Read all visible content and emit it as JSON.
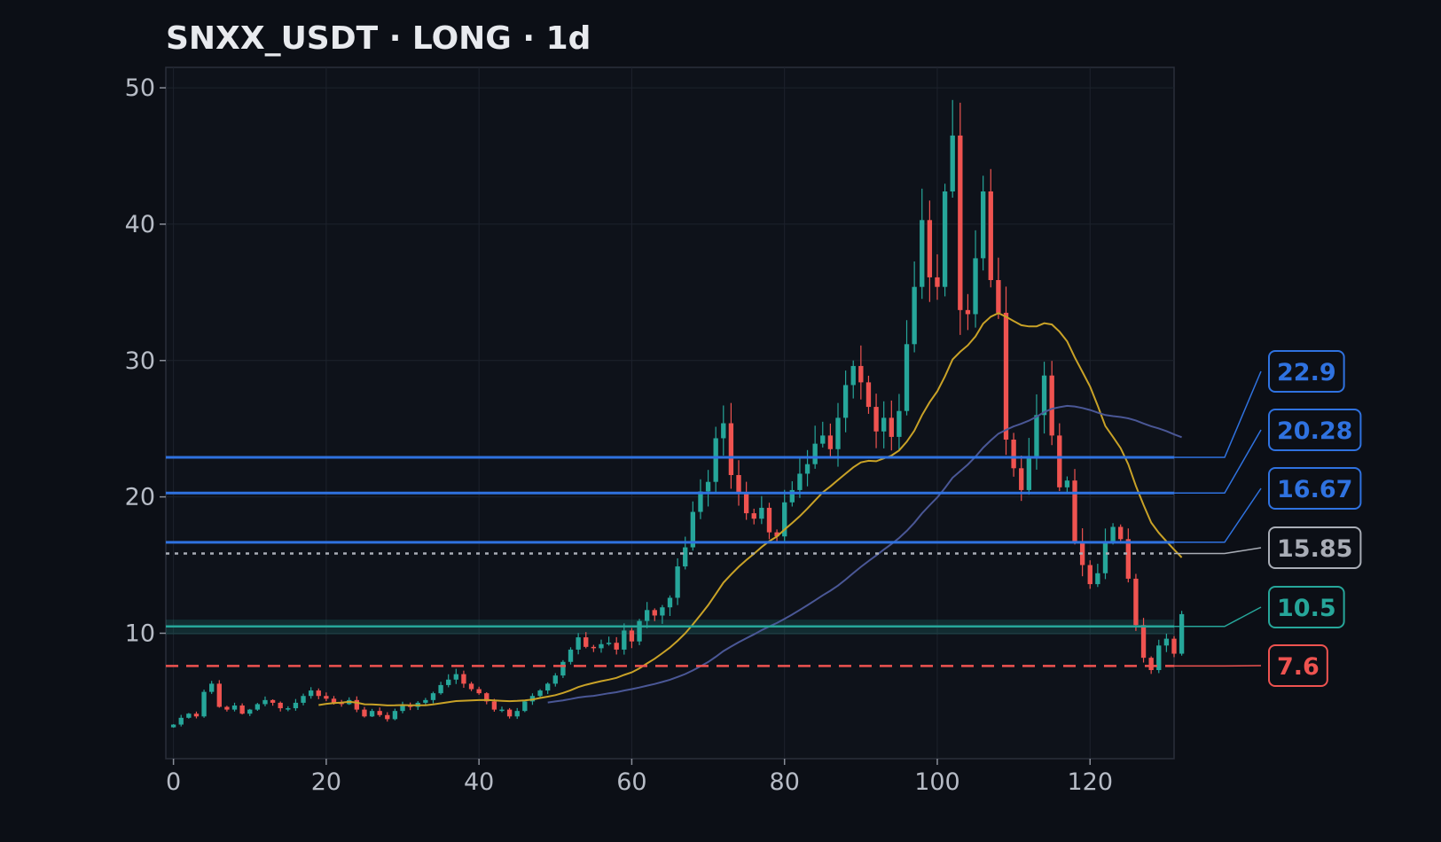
{
  "chart_data": {
    "type": "candlestick",
    "title": "SNXX_USDT · LONG · 1d",
    "xlabel": "",
    "ylabel": "",
    "xlim": [
      -1,
      131
    ],
    "ylim": [
      0.8,
      51.5
    ],
    "x_ticks": [
      0,
      20,
      40,
      60,
      80,
      100,
      120
    ],
    "y_ticks": [
      10,
      20,
      30,
      40,
      50
    ],
    "grid": true,
    "colors": {
      "background": "#0c0f16",
      "up": "#26a69a",
      "down": "#ef5350",
      "ma_fast": "#c9a227",
      "ma_slow": "#4a5796",
      "target": "#2f72e0",
      "entry": "#a9adb6",
      "take_profit_zone": "#26a69a",
      "stop": "#ef5350"
    },
    "levels": [
      {
        "label": "22.9",
        "value": 22.9,
        "kind": "target",
        "style": "solid"
      },
      {
        "label": "20.28",
        "value": 20.28,
        "kind": "target",
        "style": "solid"
      },
      {
        "label": "16.67",
        "value": 16.67,
        "kind": "target",
        "style": "solid"
      },
      {
        "label": "15.85",
        "value": 15.85,
        "kind": "entry",
        "style": "dotted"
      },
      {
        "label": "10.5",
        "value": 10.5,
        "kind": "zone",
        "style": "band",
        "zone": [
          9.9,
          11.0
        ]
      },
      {
        "label": "7.6",
        "value": 7.6,
        "kind": "stop",
        "style": "dashed"
      }
    ],
    "closes": [
      3.3,
      3.8,
      4.1,
      3.9,
      5.7,
      6.3,
      4.6,
      4.4,
      4.7,
      4.1,
      4.4,
      4.8,
      5.1,
      4.9,
      4.5,
      4.5,
      4.9,
      5.4,
      5.8,
      5.4,
      5.2,
      4.9,
      4.8,
      5.1,
      4.4,
      3.9,
      4.3,
      4.0,
      3.7,
      4.3,
      4.7,
      4.6,
      4.9,
      5.1,
      5.6,
      6.2,
      6.6,
      7.0,
      6.3,
      5.9,
      5.6,
      5.0,
      4.4,
      4.4,
      3.9,
      4.3,
      5.0,
      5.4,
      5.8,
      6.3,
      6.9,
      7.9,
      8.8,
      9.7,
      9.0,
      8.9,
      9.2,
      9.3,
      8.8,
      10.2,
      9.4,
      10.9,
      11.7,
      11.3,
      11.9,
      12.6,
      14.9,
      16.3,
      18.9,
      20.4,
      21.1,
      24.3,
      25.4,
      21.6,
      20.3,
      18.8,
      18.4,
      19.2,
      17.4,
      17.1,
      19.6,
      20.5,
      21.7,
      22.4,
      23.9,
      24.5,
      23.5,
      25.8,
      28.2,
      29.6,
      28.4,
      26.6,
      24.8,
      25.8,
      24.4,
      26.3,
      31.2,
      35.4,
      40.3,
      36.1,
      35.4,
      42.4,
      46.5,
      33.7,
      33.4,
      37.5,
      42.4,
      35.9,
      33.5,
      24.2,
      22.1,
      20.5,
      23.0,
      26.0,
      28.9,
      24.5,
      20.7,
      21.2,
      16.7,
      15.0,
      13.6,
      14.4,
      16.7,
      17.8,
      16.9,
      14.0,
      10.6,
      8.2,
      7.3,
      9.1,
      9.6,
      8.5,
      11.4
    ]
  }
}
